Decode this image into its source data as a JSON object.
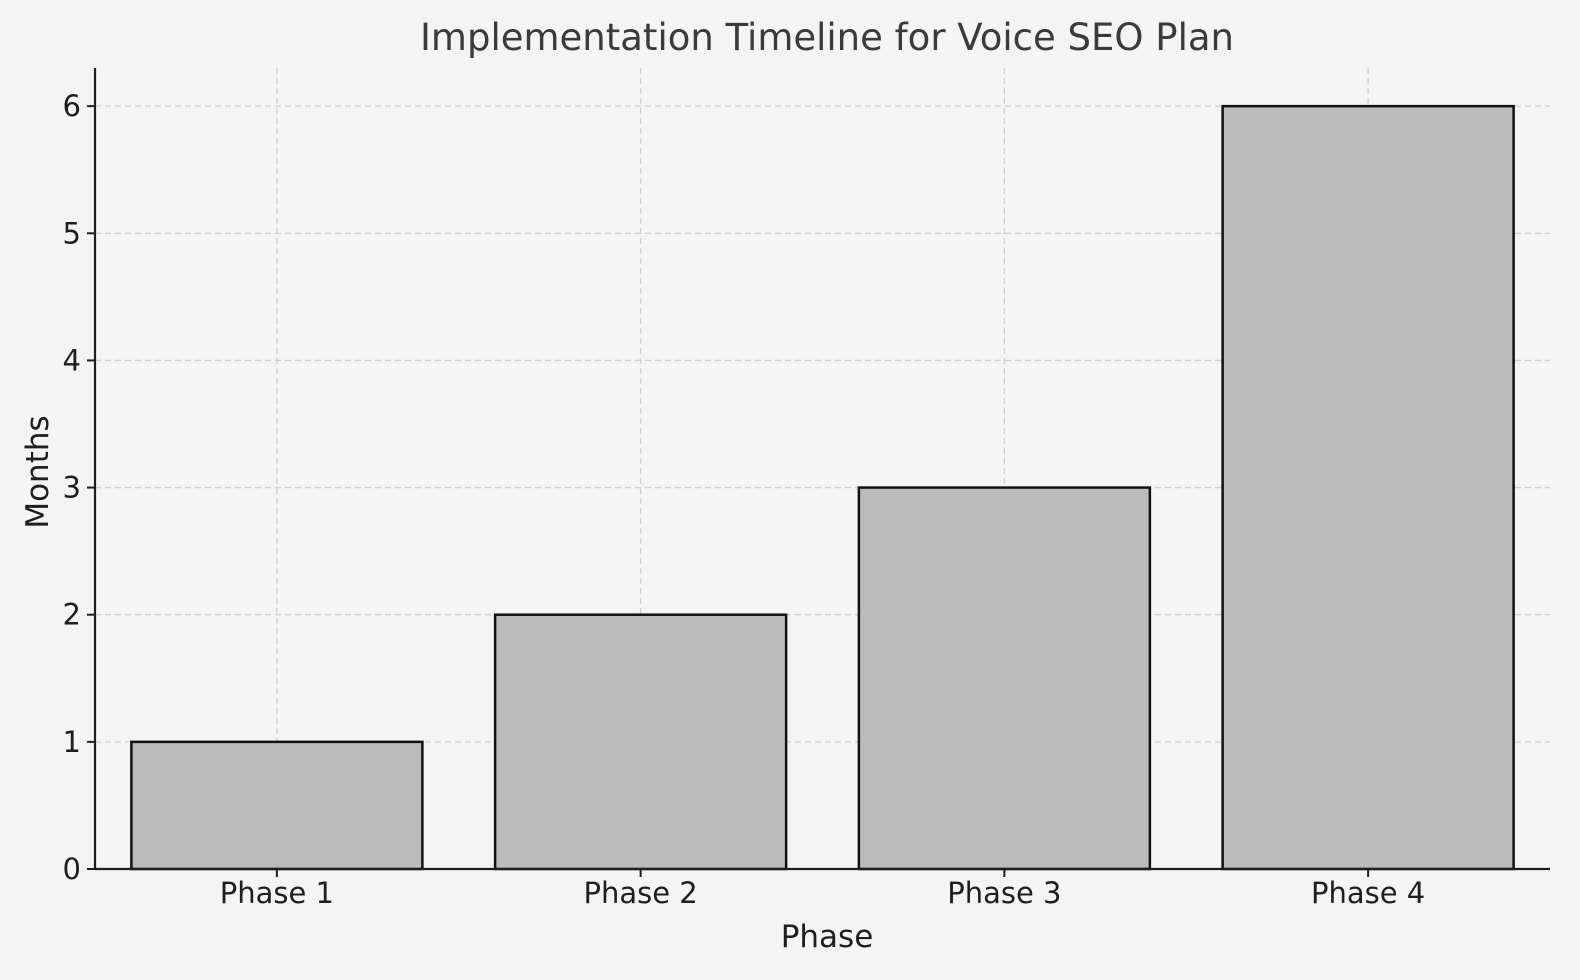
{
  "chart_data": {
    "type": "bar",
    "title": "Implementation Timeline for Voice SEO Plan",
    "xlabel": "Phase",
    "ylabel": "Months",
    "categories": [
      "Phase 1",
      "Phase 2",
      "Phase 3",
      "Phase 4"
    ],
    "values": [
      1,
      2,
      3,
      6
    ],
    "ylim": [
      0,
      6.3
    ],
    "yticks": [
      0,
      1,
      2,
      3,
      4,
      5,
      6
    ],
    "grid": true,
    "colors": {
      "bar_fill": "#bbbbbb",
      "bar_edge": "#111111",
      "background": "#f4f4f4",
      "grid": "#cfcfcf"
    }
  }
}
